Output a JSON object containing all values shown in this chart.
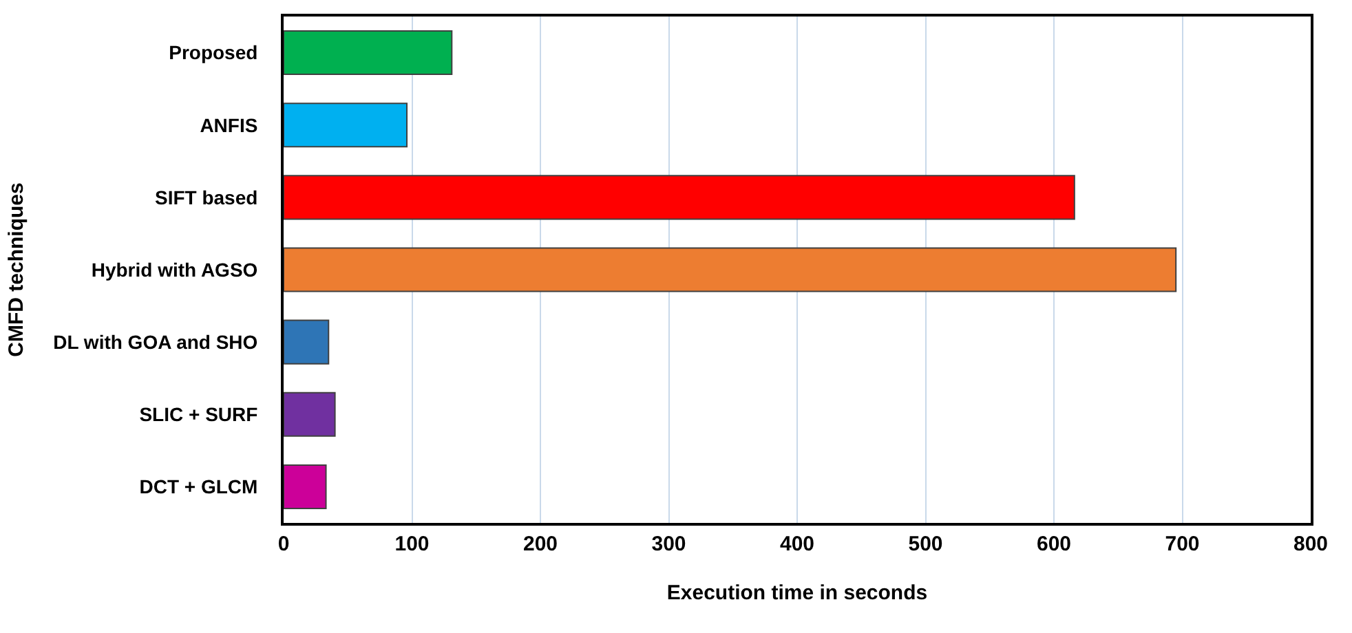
{
  "chart_data": {
    "type": "bar",
    "orientation": "horizontal",
    "xlabel": "Execution time in seconds",
    "ylabel": "CMFD techniques",
    "categories": [
      "Proposed",
      "ANFIS",
      "SIFT based",
      "Hybrid with AGSO",
      "DL with GOA and SHO",
      "SLIC + SURF",
      "DCT + GLCM"
    ],
    "values": [
      131,
      96,
      616,
      695,
      35,
      40,
      33
    ],
    "colors": [
      "#00b050",
      "#00b0f0",
      "#ff0000",
      "#ed7d31",
      "#2e75b6",
      "#7030a0",
      "#cc0099"
    ],
    "xlim": [
      0,
      800
    ],
    "xticks": [
      0,
      100,
      200,
      300,
      400,
      500,
      600,
      700,
      800
    ],
    "grid": "x",
    "legend": false
  }
}
